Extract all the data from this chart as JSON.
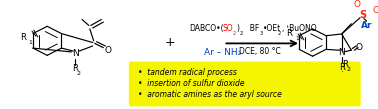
{
  "bg_color": "#ffffff",
  "yellow_box_color": "#f5f500",
  "bullet_texts": [
    "tandem radical process",
    "insertion of sulfur dioxide",
    "aromatic amines as the aryl source"
  ],
  "so2_color": "#ff0000",
  "ar_nh2_color": "#0044cc",
  "ar_product_color": "#0044cc",
  "so_color": "#ff2200",
  "black": "#000000"
}
